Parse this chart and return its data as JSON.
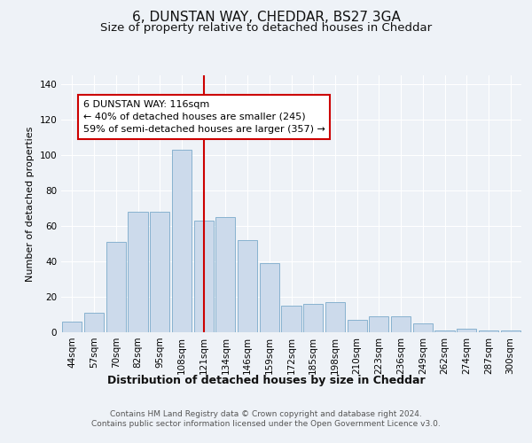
{
  "title1": "6, DUNSTAN WAY, CHEDDAR, BS27 3GA",
  "title2": "Size of property relative to detached houses in Cheddar",
  "xlabel": "Distribution of detached houses by size in Cheddar",
  "ylabel": "Number of detached properties",
  "categories": [
    "44sqm",
    "57sqm",
    "70sqm",
    "82sqm",
    "95sqm",
    "108sqm",
    "121sqm",
    "134sqm",
    "146sqm",
    "159sqm",
    "172sqm",
    "185sqm",
    "198sqm",
    "210sqm",
    "223sqm",
    "236sqm",
    "249sqm",
    "262sqm",
    "274sqm",
    "287sqm",
    "300sqm"
  ],
  "values": [
    6,
    11,
    51,
    68,
    68,
    103,
    63,
    65,
    52,
    39,
    15,
    16,
    17,
    7,
    9,
    9,
    5,
    1,
    2,
    1,
    1
  ],
  "bar_color": "#ccdaeb",
  "bar_edge_color": "#7aaaca",
  "red_line_x": 6.0,
  "red_line_color": "#cc0000",
  "annotation_line1": "6 DUNSTAN WAY: 116sqm",
  "annotation_line2": "← 40% of detached houses are smaller (245)",
  "annotation_line3": "59% of semi-detached houses are larger (357) →",
  "annotation_box_facecolor": "#ffffff",
  "annotation_box_edgecolor": "#cc0000",
  "ylim": [
    0,
    145
  ],
  "yticks": [
    0,
    20,
    40,
    60,
    80,
    100,
    120,
    140
  ],
  "footer1": "Contains HM Land Registry data © Crown copyright and database right 2024.",
  "footer2": "Contains public sector information licensed under the Open Government Licence v3.0.",
  "bg_color": "#eef2f7",
  "plot_bg_color": "#eef2f7",
  "title1_fontsize": 11,
  "title2_fontsize": 9.5,
  "xlabel_fontsize": 9,
  "ylabel_fontsize": 8,
  "tick_fontsize": 7.5,
  "annotation_fontsize": 8,
  "footer_fontsize": 6.5
}
